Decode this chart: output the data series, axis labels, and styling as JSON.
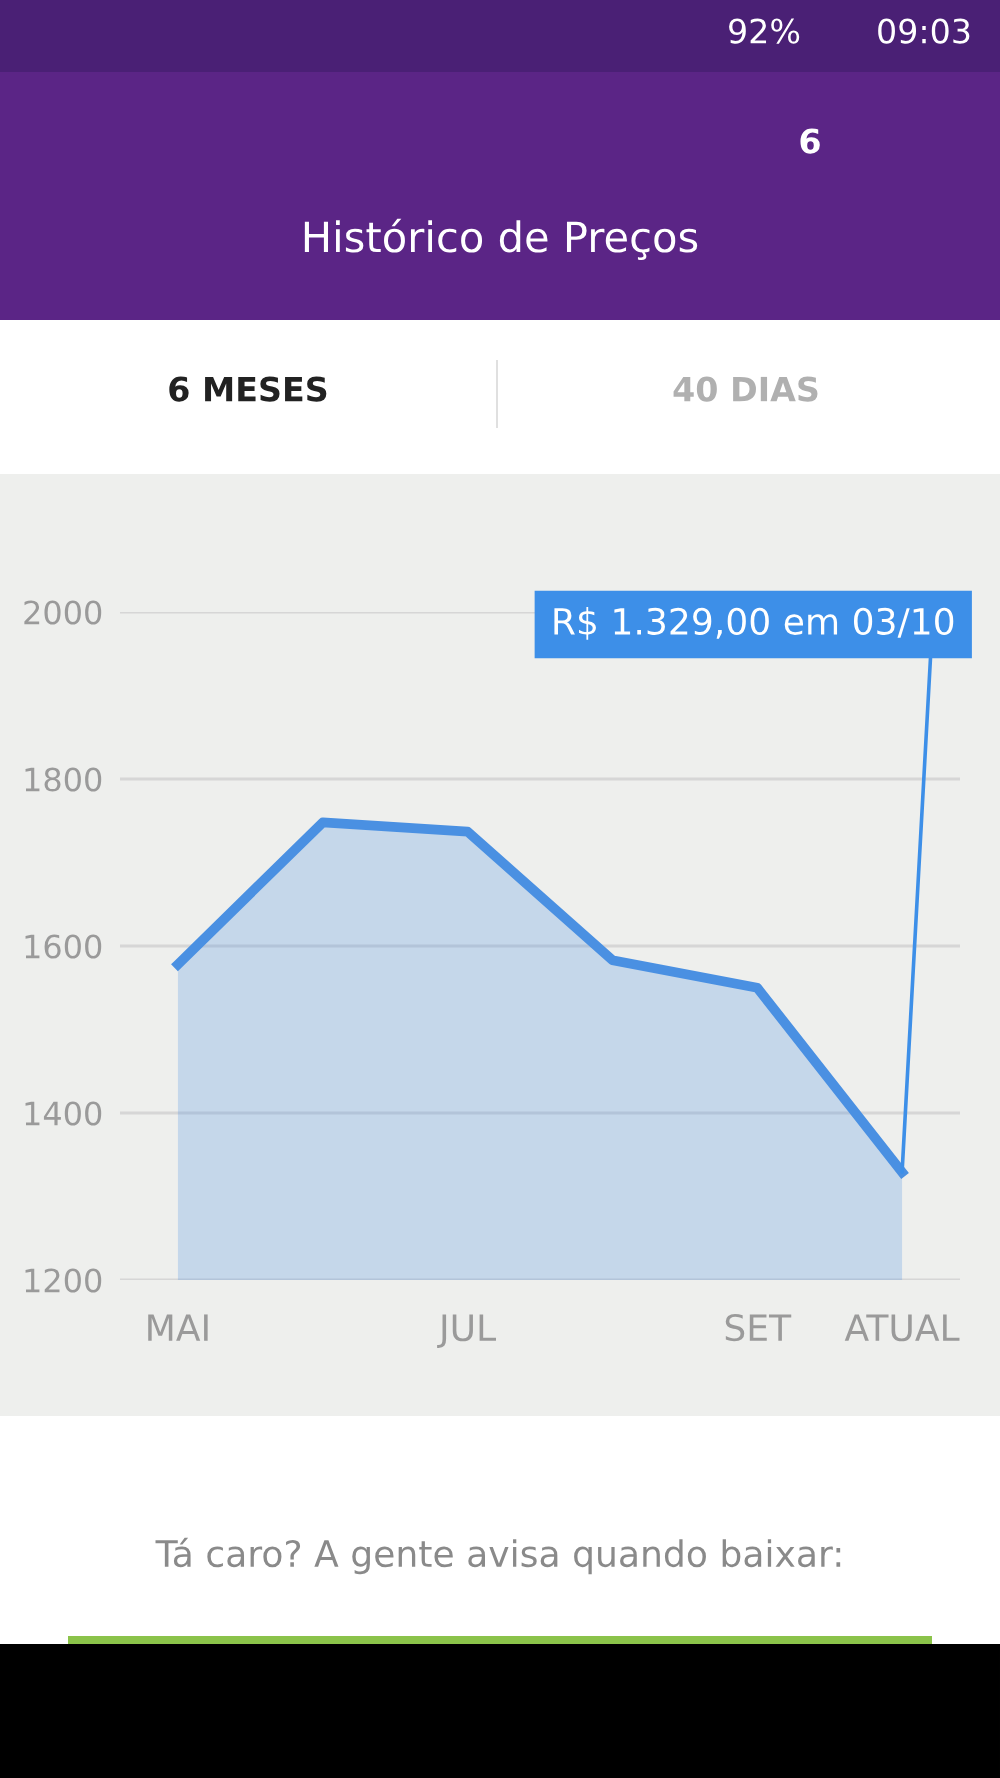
{
  "chart_data": {
    "type": "area",
    "title": "Histórico de Preços",
    "categories": [
      "MAI",
      null,
      "JUL",
      null,
      "SET",
      "ATUAL"
    ],
    "series": [
      {
        "color": "#4a90e2",
        "values": [
          1578,
          1748,
          1737,
          1583,
          1550,
          1329
        ]
      }
    ],
    "ylim": [
      1200,
      2000
    ],
    "yticks": [
      1200,
      1400,
      1600,
      1800,
      2000
    ],
    "grid": "y",
    "marker": "none",
    "line_style": "solid",
    "annotations": [
      {
        "text": "R$ 1.329,00 em 03/10",
        "x": "ATUAL",
        "y": 1329
      },
      "6 MESES",
      "40 DIAS",
      "Tá caro? A gente avisa quando baixar:",
      "92%",
      "09:03",
      "6"
    ]
  }
}
